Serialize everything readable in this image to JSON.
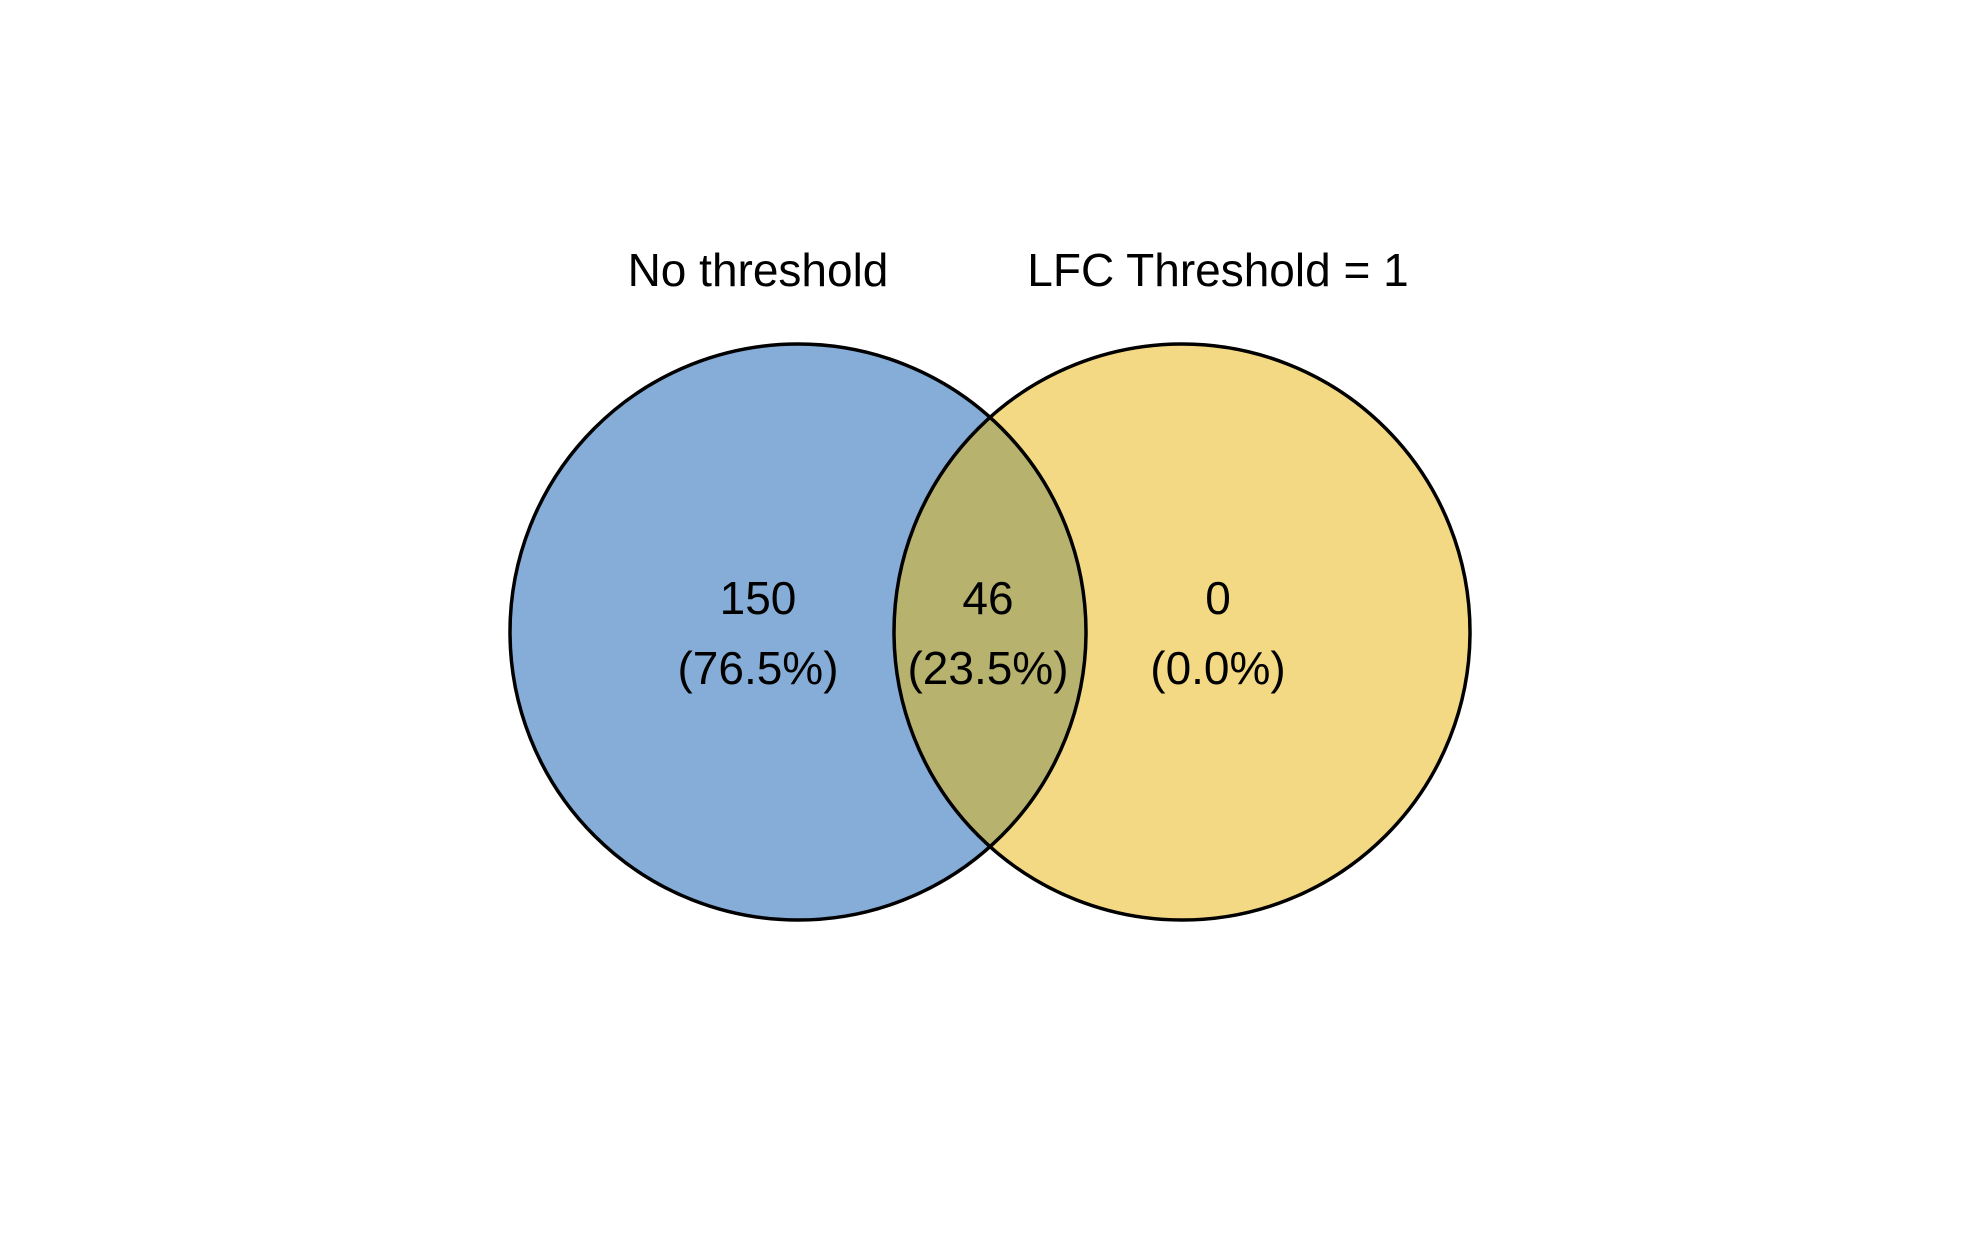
{
  "sets": [
    {
      "name": "No threshold",
      "color": "#86ADD8"
    },
    {
      "name": "LFC Threshold = 1",
      "color": "#F3D983"
    }
  ],
  "regions": {
    "only_a": {
      "count": "150",
      "percent": "(76.5%)"
    },
    "both": {
      "count": "46",
      "percent": "(23.5%)"
    },
    "only_b": {
      "count": "0",
      "percent": "(0.0%)"
    }
  },
  "colors": {
    "overlap": "#B7B26E",
    "outline": "#000000"
  }
}
